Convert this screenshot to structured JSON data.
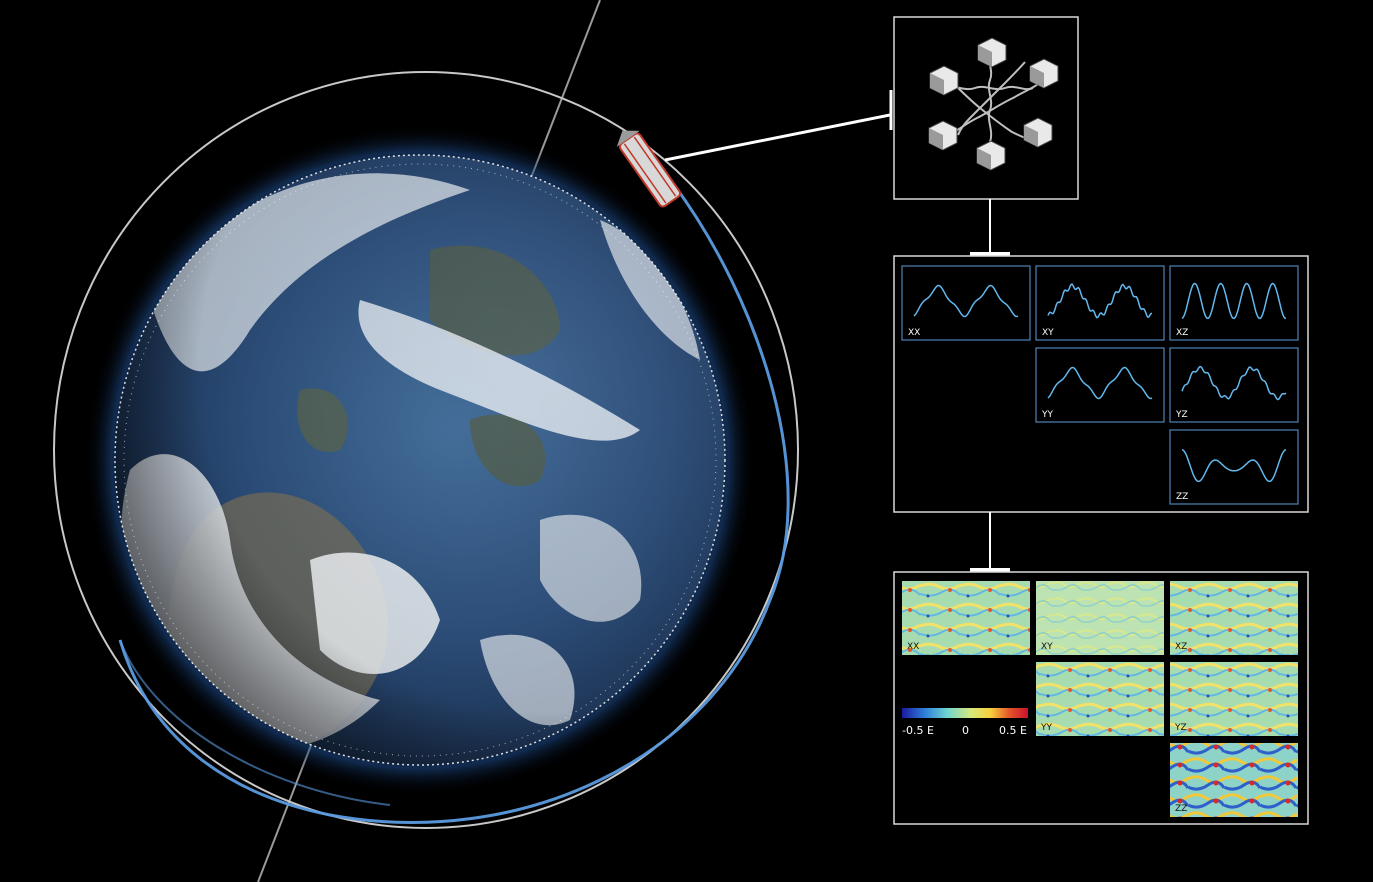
{
  "colors": {
    "background": "#000000",
    "ocean": "#2f4d78",
    "clouds": "#e6ebf2",
    "orbit_ring": "#c8c8c8",
    "orbit_track": "#5a9be0",
    "panel_border": "#d9d9d9",
    "signal_border": "#4d86b8",
    "signal_line": "#63b8ee",
    "satellite": "#c0392b"
  },
  "icons": {
    "earth": "earth-globe-icon",
    "satellite": "goce-satellite-icon",
    "gradiometer": "accelerometer-cube-icon"
  },
  "gravity_panels": [
    {
      "label": "XX"
    },
    {
      "label": "XY"
    },
    {
      "label": "XZ"
    },
    {
      "label": "YY"
    },
    {
      "label": "YZ"
    },
    {
      "label": "ZZ"
    }
  ],
  "map_panels": [
    {
      "label": "XX"
    },
    {
      "label": "XY"
    },
    {
      "label": "XZ"
    },
    {
      "label": "YY"
    },
    {
      "label": "YZ"
    },
    {
      "label": "ZZ"
    }
  ],
  "colorbar": {
    "labels": [
      "-0.5 E",
      "0",
      "0.5 E"
    ],
    "colors": [
      "#1a1aa0",
      "#2f7fd8",
      "#6fd4d0",
      "#d8e87a",
      "#f6d23c",
      "#e5572a",
      "#c8102e"
    ]
  }
}
